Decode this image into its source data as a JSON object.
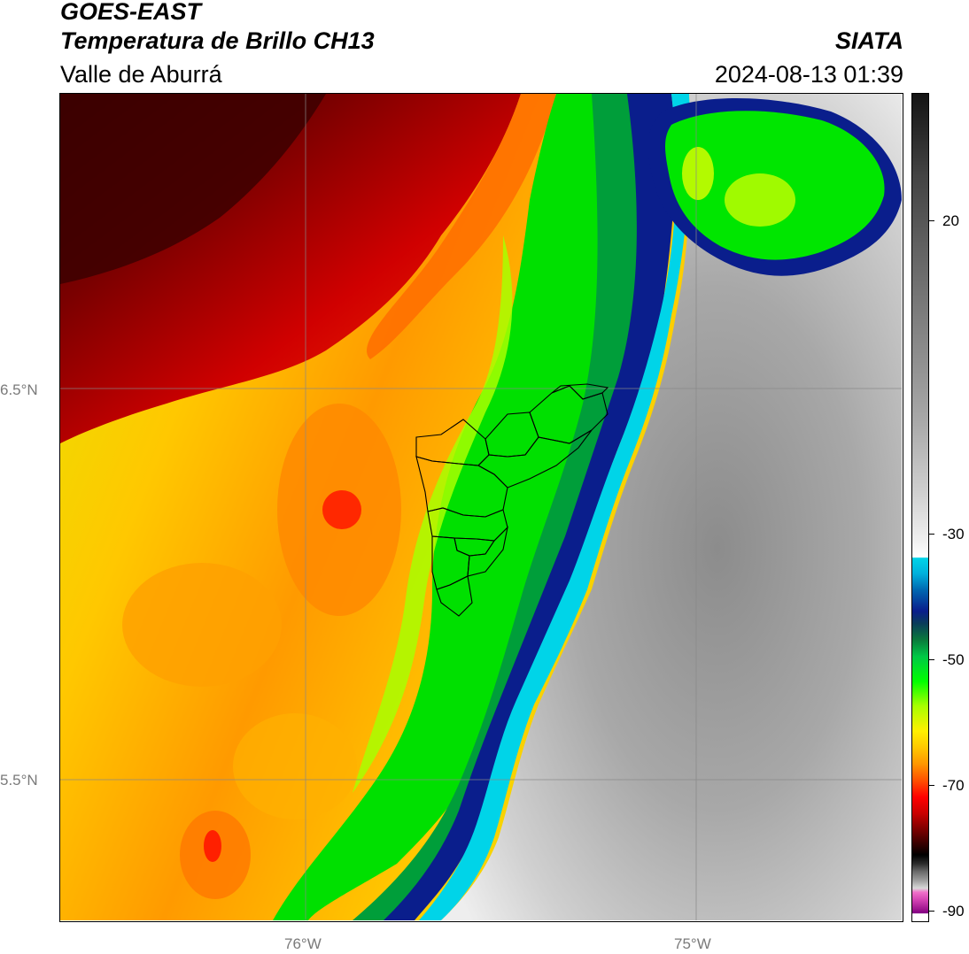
{
  "header": {
    "satellite": "GOES-EAST",
    "product": "Temperatura de Brillo CH13",
    "region": "Valle de Aburrá",
    "brand": "SIATA",
    "timestamp": "2024-08-13 01:39"
  },
  "map": {
    "lat_labels": [
      "6.5°N",
      "5.5°N"
    ],
    "lon_labels": [
      "76°W",
      "75°W"
    ]
  },
  "colorbar": {
    "ticks": [
      "20",
      "-30",
      "-50",
      "-70",
      "-90"
    ],
    "colors": {
      "gray_warm": "#9a9a9a",
      "cyan": "#00d4e8",
      "dark_blue": "#0a1e8c",
      "green": "#00ff00",
      "yellow": "#fff000",
      "orange": "#ff9600",
      "red": "#ff0000",
      "dark_red": "#500000",
      "magenta": "#a01890"
    }
  }
}
